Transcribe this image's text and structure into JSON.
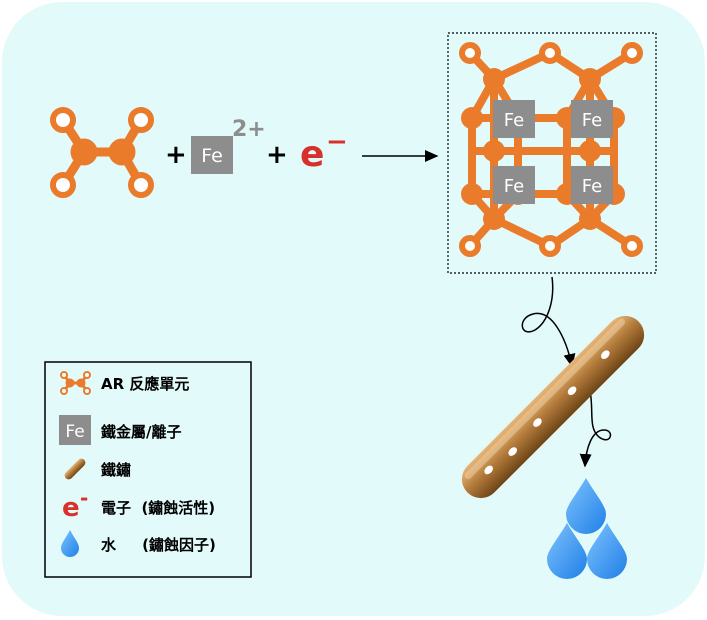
{
  "equation": {
    "plus_1": "+",
    "fe_label": "Fe",
    "charge": "2+",
    "plus_2": "+",
    "electron_e": "e",
    "electron_minus": "−"
  },
  "framework": {
    "fe_label": "Fe"
  },
  "legend": {
    "items": [
      {
        "label": "AR 反應單元"
      },
      {
        "icon_text": "Fe",
        "label": "鐵金屬/離子"
      },
      {
        "label": "鐵鏽"
      },
      {
        "icon_text": "e",
        "icon_sup": "-",
        "label": "電子  (鏽蝕活性)"
      },
      {
        "label": "水     (鏽蝕因子)"
      }
    ]
  },
  "colors": {
    "background_panel": "#e2fbfa",
    "orange": "#ea7b2b",
    "fe_gray": "#8d8d8d",
    "electron_red": "#d8302a",
    "water_blue": "#2f8ff0",
    "rust_brown": "#b47c3c"
  }
}
